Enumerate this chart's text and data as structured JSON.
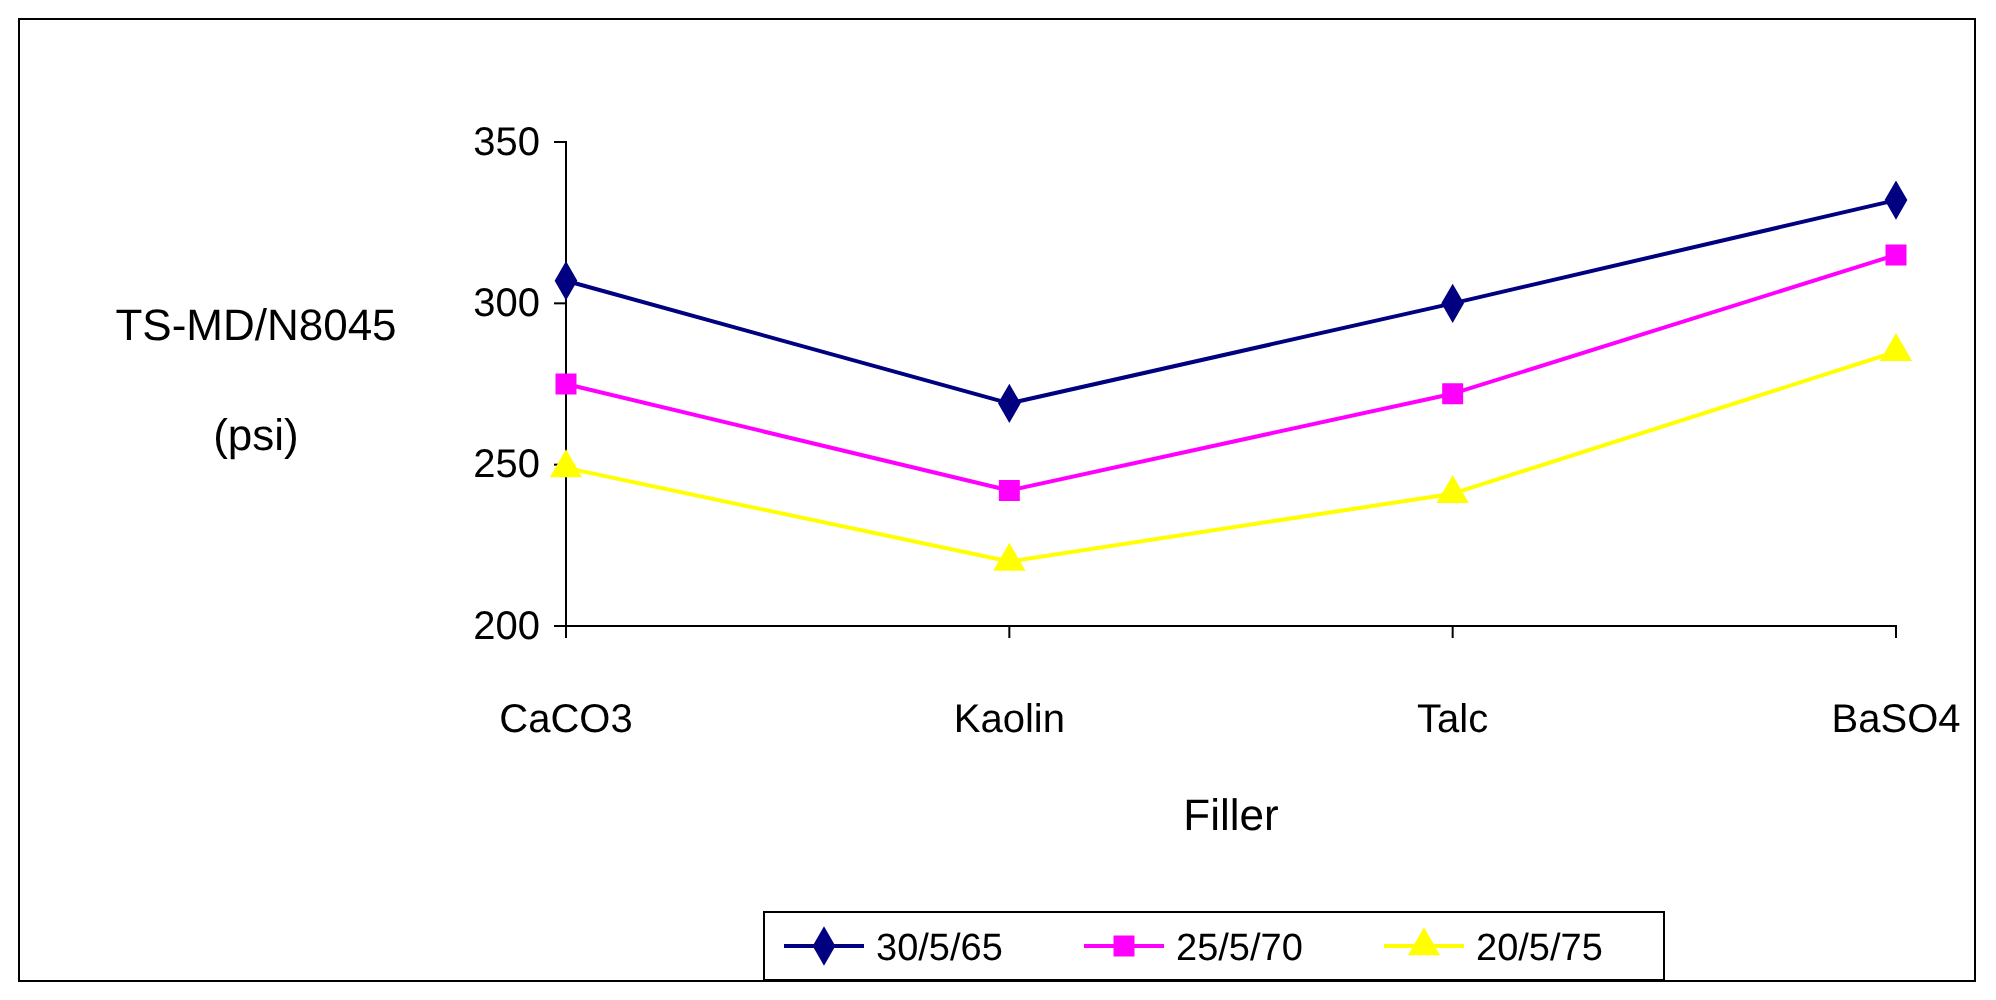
{
  "chart_data": {
    "type": "line",
    "xlabel": "Filler",
    "ylabel": "TS-MD/N8045 (psi)",
    "categories": [
      "CaCO3",
      "Kaolin",
      "Talc",
      "BaSO4"
    ],
    "series": [
      {
        "name": "30/5/65",
        "color": "#000080",
        "values": [
          307,
          269,
          300,
          332
        ],
        "marker": "diamond"
      },
      {
        "name": "25/5/70",
        "color": "#ff00ff",
        "values": [
          275,
          242,
          272,
          315
        ],
        "marker": "square"
      },
      {
        "name": "20/5/75",
        "color": "#ffff00",
        "values": [
          249,
          220,
          241,
          285
        ],
        "marker": "triangle"
      }
    ],
    "ylim": [
      200,
      350
    ],
    "yticks": [
      200,
      250,
      300,
      350
    ],
    "grid": false,
    "legend": "bottom",
    "line_style": "solid"
  }
}
